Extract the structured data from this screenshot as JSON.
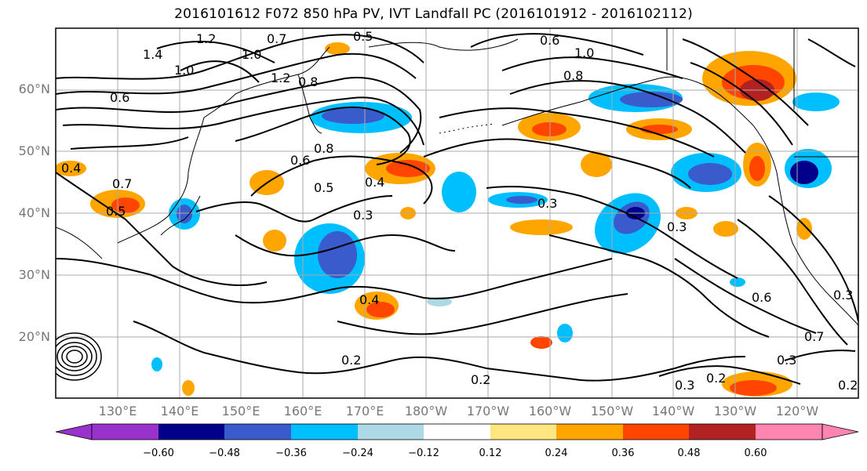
{
  "title": "2016101612 F072 850 hPa PV, IVT Landfall PC (2016101912 - 2016102112)",
  "map": {
    "lat_labels": [
      "60°N",
      "50°N",
      "40°N",
      "30°N",
      "20°N"
    ],
    "lon_labels": [
      "130°E",
      "140°E",
      "150°E",
      "160°E",
      "170°E",
      "180°W",
      "170°W",
      "160°W",
      "150°W",
      "140°W",
      "130°W",
      "120°W"
    ],
    "contour_labels": [
      "1.4",
      "1.0",
      "1.2",
      "0.7",
      "0.5",
      "1.0",
      "1.2",
      "0.8",
      "0.6",
      "1.0",
      "0.8",
      "0.6",
      "0.4",
      "0.7",
      "0.5",
      "0.6",
      "0.8",
      "0.4",
      "0.5",
      "0.3",
      "0.3",
      "0.3",
      "0.4",
      "0.2",
      "0.2",
      "0.3",
      "0.2",
      "0.3",
      "0.6",
      "0.7",
      "0.3",
      "0.2"
    ]
  },
  "colorbar": {
    "ticks": [
      "−0.60",
      "−0.48",
      "−0.36",
      "−0.24",
      "−0.12",
      "0.12",
      "0.24",
      "0.36",
      "0.48",
      "0.60"
    ],
    "colors": [
      "#9932CC",
      "#00008B",
      "#3A5BCB",
      "#00BFFF",
      "#ADD8E6",
      "#FFFFFF",
      "#FFE680",
      "#FFA500",
      "#FF4500",
      "#B22222",
      "#FF85B0"
    ]
  },
  "fill_colors": {
    "neg_strong": "#00008B",
    "neg_mid": "#3A5BCB",
    "neg_light": "#00BFFF",
    "neg_faint": "#ADD8E6",
    "pos_faint": "#FFE680",
    "pos_light": "#FFA500",
    "pos_mid": "#FF4500",
    "pos_strong": "#B22222"
  }
}
